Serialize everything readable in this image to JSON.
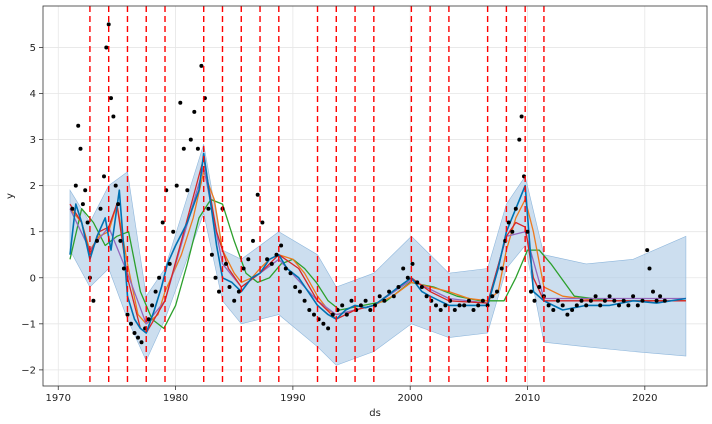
{
  "chart_data": {
    "type": "line",
    "xlabel": "ds",
    "ylabel": "y",
    "xlim": [
      1968.7,
      2025.3
    ],
    "ylim": [
      -2.35,
      5.9
    ],
    "x_ticks": [
      1970,
      1980,
      1990,
      2000,
      2010,
      2020
    ],
    "y_ticks": [
      -2,
      -1,
      0,
      1,
      2,
      3,
      4,
      5
    ],
    "grid": true,
    "changepoints": [
      1972.7,
      1974.3,
      1975.9,
      1977.5,
      1979.1,
      1982.4,
      1984.0,
      1985.6,
      1987.2,
      1988.8,
      1992.1,
      1993.7,
      1995.3,
      1996.9,
      2000.1,
      2001.7,
      2003.3,
      2006.6,
      2008.2,
      2009.8,
      2011.4
    ],
    "colors": {
      "observed": "#000000",
      "forecast": "#0072B2",
      "interval": "#aac8e4",
      "changepoint": "#ff0000",
      "model_orange": "#ee7a1e",
      "model_green": "#2ca02c",
      "model_red": "#d62728",
      "model_purple": "#9467bd"
    },
    "series": [
      {
        "key": "forecast",
        "x": [
          1971.0,
          1971.5,
          1972.0,
          1972.7,
          1973.3,
          1974.0,
          1974.5,
          1975.2,
          1975.9,
          1976.5,
          1977.0,
          1977.5,
          1978.2,
          1978.8,
          1979.3,
          1980.0,
          1981.0,
          1982.0,
          1982.4,
          1983.0,
          1983.5,
          1984.0,
          1984.8,
          1985.6,
          1986.5,
          1987.2,
          1988.0,
          1988.8,
          1989.5,
          1990.5,
          1991.3,
          1992.1,
          1993.0,
          1993.7,
          1994.5,
          1995.3,
          1996.2,
          1996.9,
          1998.0,
          1999.0,
          2000.1,
          2001.0,
          2001.7,
          2002.5,
          2003.3,
          2005.0,
          2006.6,
          2007.5,
          2008.2,
          2009.0,
          2009.8,
          2010.5,
          2011.4,
          2013.0,
          2015.0,
          2017.0,
          2019.0,
          2021.0,
          2023.5
        ],
        "y": [
          0.5,
          1.6,
          1.2,
          0.4,
          0.9,
          1.3,
          0.6,
          1.9,
          -0.4,
          -0.9,
          -1.1,
          -1.2,
          -0.7,
          -0.2,
          0.3,
          0.7,
          1.2,
          1.9,
          2.7,
          1.6,
          0.7,
          0.0,
          -0.1,
          -0.3,
          0.0,
          0.1,
          0.4,
          0.5,
          0.2,
          0.0,
          -0.3,
          -0.6,
          -0.8,
          -0.9,
          -0.7,
          -0.6,
          -0.65,
          -0.6,
          -0.4,
          -0.2,
          0.0,
          -0.3,
          -0.4,
          -0.5,
          -0.6,
          -0.6,
          -0.6,
          0.2,
          1.0,
          1.5,
          2.0,
          -0.3,
          -0.5,
          -0.7,
          -0.6,
          -0.6,
          -0.5,
          -0.55,
          -0.45
        ]
      },
      {
        "key": "model_orange",
        "x": [
          1971.0,
          1972.0,
          1972.7,
          1973.5,
          1974.3,
          1975.0,
          1975.9,
          1976.8,
          1977.5,
          1978.5,
          1979.1,
          1980.5,
          1981.5,
          1982.4,
          1983.3,
          1984.0,
          1985.0,
          1985.6,
          1986.5,
          1987.2,
          1988.0,
          1988.8,
          1990.0,
          1991.0,
          1992.1,
          1993.0,
          1993.7,
          1995.3,
          1996.9,
          1998.5,
          2000.1,
          2001.7,
          2003.3,
          2005.0,
          2006.6,
          2007.5,
          2008.2,
          2009.0,
          2009.8,
          2010.5,
          2011.4,
          2013.0,
          2016.0,
          2019.0,
          2023.5
        ],
        "y": [
          1.5,
          1.2,
          0.6,
          0.9,
          1.0,
          1.6,
          0.3,
          -0.8,
          -1.0,
          -0.8,
          -0.3,
          0.5,
          1.3,
          2.3,
          1.7,
          0.6,
          0.1,
          -0.1,
          0.0,
          0.2,
          0.4,
          0.5,
          0.4,
          0.1,
          -0.4,
          -0.7,
          -0.8,
          -0.7,
          -0.6,
          -0.4,
          -0.1,
          -0.2,
          -0.3,
          -0.45,
          -0.5,
          -0.3,
          0.6,
          1.3,
          1.7,
          1.0,
          -0.2,
          -0.4,
          -0.5,
          -0.5,
          -0.5
        ]
      },
      {
        "key": "model_green",
        "x": [
          1971.0,
          1972.0,
          1973.0,
          1974.0,
          1975.0,
          1976.0,
          1977.0,
          1978.0,
          1979.0,
          1980.0,
          1981.0,
          1982.0,
          1983.0,
          1984.0,
          1985.0,
          1986.0,
          1987.0,
          1988.0,
          1989.0,
          1990.0,
          1991.0,
          1992.0,
          1993.0,
          1994.0,
          1996.0,
          1998.0,
          2000.0,
          2002.0,
          2004.0,
          2006.0,
          2008.0,
          2009.0,
          2010.0,
          2011.0,
          2012.0,
          2014.0,
          2017.0,
          2020.0,
          2023.5
        ],
        "y": [
          0.4,
          1.5,
          1.2,
          0.7,
          0.9,
          1.0,
          -0.3,
          -0.9,
          -1.1,
          -0.6,
          0.3,
          1.3,
          1.7,
          1.6,
          0.8,
          0.1,
          -0.1,
          0.0,
          0.3,
          0.4,
          0.2,
          -0.1,
          -0.5,
          -0.7,
          -0.6,
          -0.5,
          -0.1,
          -0.2,
          -0.4,
          -0.5,
          -0.5,
          0.0,
          0.6,
          0.6,
          0.3,
          -0.4,
          -0.5,
          -0.5,
          -0.5
        ]
      },
      {
        "key": "model_red",
        "x": [
          1971.0,
          1972.0,
          1972.7,
          1973.5,
          1974.3,
          1975.0,
          1975.9,
          1977.0,
          1977.5,
          1979.1,
          1980.5,
          1982.4,
          1983.5,
          1984.5,
          1985.6,
          1987.2,
          1988.8,
          1990.5,
          1992.1,
          1993.7,
          1995.3,
          1996.9,
          2000.1,
          2001.7,
          2003.3,
          2006.6,
          2008.2,
          2009.0,
          2009.8,
          2010.5,
          2011.4,
          2015.0,
          2019.0,
          2023.5
        ],
        "y": [
          1.6,
          1.2,
          0.5,
          1.0,
          1.1,
          1.6,
          0.0,
          -1.1,
          -1.2,
          -0.5,
          0.8,
          2.6,
          1.0,
          0.2,
          -0.2,
          0.1,
          0.5,
          0.2,
          -0.5,
          -0.9,
          -0.7,
          -0.6,
          0.0,
          -0.3,
          -0.5,
          -0.55,
          0.9,
          1.2,
          1.1,
          0.0,
          -0.5,
          -0.5,
          -0.5,
          -0.5
        ]
      },
      {
        "key": "model_purple",
        "x": [
          1971.0,
          1972.7,
          1974.3,
          1975.9,
          1977.5,
          1979.1,
          1982.4,
          1984.0,
          1985.6,
          1988.8,
          1992.1,
          1993.7,
          1996.9,
          2000.1,
          2003.3,
          2006.6,
          2008.2,
          2009.8,
          2011.4,
          2023.5
        ],
        "y": [
          1.5,
          0.6,
          1.1,
          0.1,
          -1.0,
          -0.5,
          2.4,
          0.3,
          -0.2,
          0.4,
          -0.5,
          -0.8,
          -0.6,
          -0.05,
          -0.45,
          -0.55,
          0.9,
          1.0,
          -0.45,
          -0.45
        ]
      }
    ],
    "interval": {
      "x": [
        1971.0,
        1972.7,
        1974.3,
        1975.9,
        1977.5,
        1979.1,
        1982.4,
        1984.0,
        1985.6,
        1988.8,
        1992.1,
        1993.7,
        1996.9,
        2000.1,
        2003.3,
        2006.6,
        2008.2,
        2009.8,
        2011.4,
        2015.0,
        2019.0,
        2023.5
      ],
      "upper": [
        1.9,
        1.2,
        2.0,
        2.3,
        -0.4,
        0.2,
        2.9,
        0.6,
        0.4,
        1.0,
        0.5,
        -0.2,
        0.1,
        0.9,
        0.1,
        0.2,
        1.6,
        2.2,
        0.5,
        0.3,
        0.4,
        0.9
      ],
      "lower": [
        0.6,
        -0.2,
        0.2,
        -0.9,
        -1.8,
        -0.9,
        1.4,
        -0.5,
        -1.0,
        -0.8,
        -1.5,
        -1.9,
        -1.6,
        -1.0,
        -1.3,
        -1.2,
        0.2,
        0.7,
        -1.4,
        -1.5,
        -1.6,
        -1.7
      ]
    },
    "observed": {
      "x": [
        1971.2,
        1971.5,
        1971.7,
        1971.9,
        1972.1,
        1972.3,
        1972.5,
        1972.7,
        1973.0,
        1973.3,
        1973.6,
        1973.9,
        1974.1,
        1974.3,
        1974.5,
        1974.7,
        1974.9,
        1975.1,
        1975.3,
        1975.6,
        1975.9,
        1976.2,
        1976.5,
        1976.8,
        1977.1,
        1977.4,
        1977.7,
        1978.0,
        1978.3,
        1978.6,
        1978.9,
        1979.2,
        1979.5,
        1979.8,
        1980.1,
        1980.4,
        1980.7,
        1981.0,
        1981.3,
        1981.6,
        1981.9,
        1982.2,
        1982.5,
        1982.8,
        1983.1,
        1983.4,
        1983.7,
        1984.0,
        1984.3,
        1984.6,
        1985.0,
        1985.4,
        1985.8,
        1986.2,
        1986.6,
        1987.0,
        1987.4,
        1987.8,
        1988.2,
        1988.6,
        1989.0,
        1989.4,
        1989.8,
        1990.2,
        1990.6,
        1991.0,
        1991.4,
        1991.8,
        1992.2,
        1992.6,
        1993.0,
        1993.4,
        1993.8,
        1994.2,
        1994.6,
        1995.0,
        1995.4,
        1995.8,
        1996.2,
        1996.6,
        1997.0,
        1997.4,
        1997.8,
        1998.2,
        1998.6,
        1999.0,
        1999.4,
        1999.8,
        2000.2,
        2000.6,
        2001.0,
        2001.4,
        2001.8,
        2002.2,
        2002.6,
        2003.0,
        2003.4,
        2003.8,
        2004.2,
        2004.6,
        2005.0,
        2005.4,
        2005.8,
        2006.2,
        2006.6,
        2007.0,
        2007.4,
        2007.8,
        2008.1,
        2008.4,
        2008.7,
        2009.0,
        2009.3,
        2009.5,
        2009.7,
        2010.0,
        2010.3,
        2010.6,
        2011.0,
        2011.4,
        2011.8,
        2012.2,
        2012.6,
        2013.0,
        2013.4,
        2013.8,
        2014.2,
        2014.6,
        2015.0,
        2015.4,
        2015.8,
        2016.2,
        2016.6,
        2017.0,
        2017.4,
        2017.8,
        2018.2,
        2018.6,
        2019.0,
        2019.4,
        2019.8,
        2020.2,
        2020.4,
        2020.7,
        2021.0,
        2021.3,
        2021.7
      ],
      "y": [
        1.5,
        2.0,
        3.3,
        2.8,
        1.6,
        1.9,
        1.2,
        0.0,
        -0.5,
        0.8,
        1.5,
        2.2,
        5.0,
        5.5,
        3.9,
        3.5,
        2.0,
        1.6,
        0.8,
        0.2,
        -0.8,
        -1.0,
        -1.2,
        -1.3,
        -1.4,
        -1.1,
        -0.9,
        -0.6,
        -0.3,
        0.0,
        1.2,
        1.9,
        0.3,
        1.0,
        2.0,
        3.8,
        2.8,
        1.9,
        3.0,
        3.6,
        2.8,
        4.6,
        3.9,
        1.5,
        0.5,
        0.0,
        -0.3,
        1.5,
        0.3,
        -0.2,
        -0.5,
        -0.3,
        0.2,
        0.4,
        0.8,
        1.8,
        1.2,
        0.4,
        0.3,
        0.5,
        0.7,
        0.2,
        0.1,
        -0.2,
        -0.3,
        -0.5,
        -0.7,
        -0.8,
        -0.9,
        -1.0,
        -1.1,
        -0.8,
        -0.7,
        -0.6,
        -0.8,
        -0.5,
        -0.7,
        -0.6,
        -0.5,
        -0.7,
        -0.6,
        -0.4,
        -0.5,
        -0.3,
        -0.4,
        -0.2,
        0.2,
        0.0,
        0.3,
        -0.1,
        -0.2,
        -0.4,
        -0.5,
        -0.6,
        -0.7,
        -0.6,
        -0.5,
        -0.7,
        -0.6,
        -0.6,
        -0.5,
        -0.7,
        -0.6,
        -0.5,
        -0.6,
        -0.4,
        -0.3,
        0.2,
        0.8,
        1.2,
        1.0,
        1.5,
        3.0,
        3.5,
        2.2,
        1.0,
        -0.3,
        -0.5,
        -0.2,
        -0.4,
        -0.6,
        -0.7,
        -0.5,
        -0.6,
        -0.8,
        -0.7,
        -0.6,
        -0.5,
        -0.6,
        -0.5,
        -0.4,
        -0.6,
        -0.5,
        -0.4,
        -0.5,
        -0.6,
        -0.5,
        -0.6,
        -0.4,
        -0.6,
        -0.5,
        0.6,
        0.2,
        -0.3,
        -0.5,
        -0.4,
        -0.5
      ]
    }
  }
}
